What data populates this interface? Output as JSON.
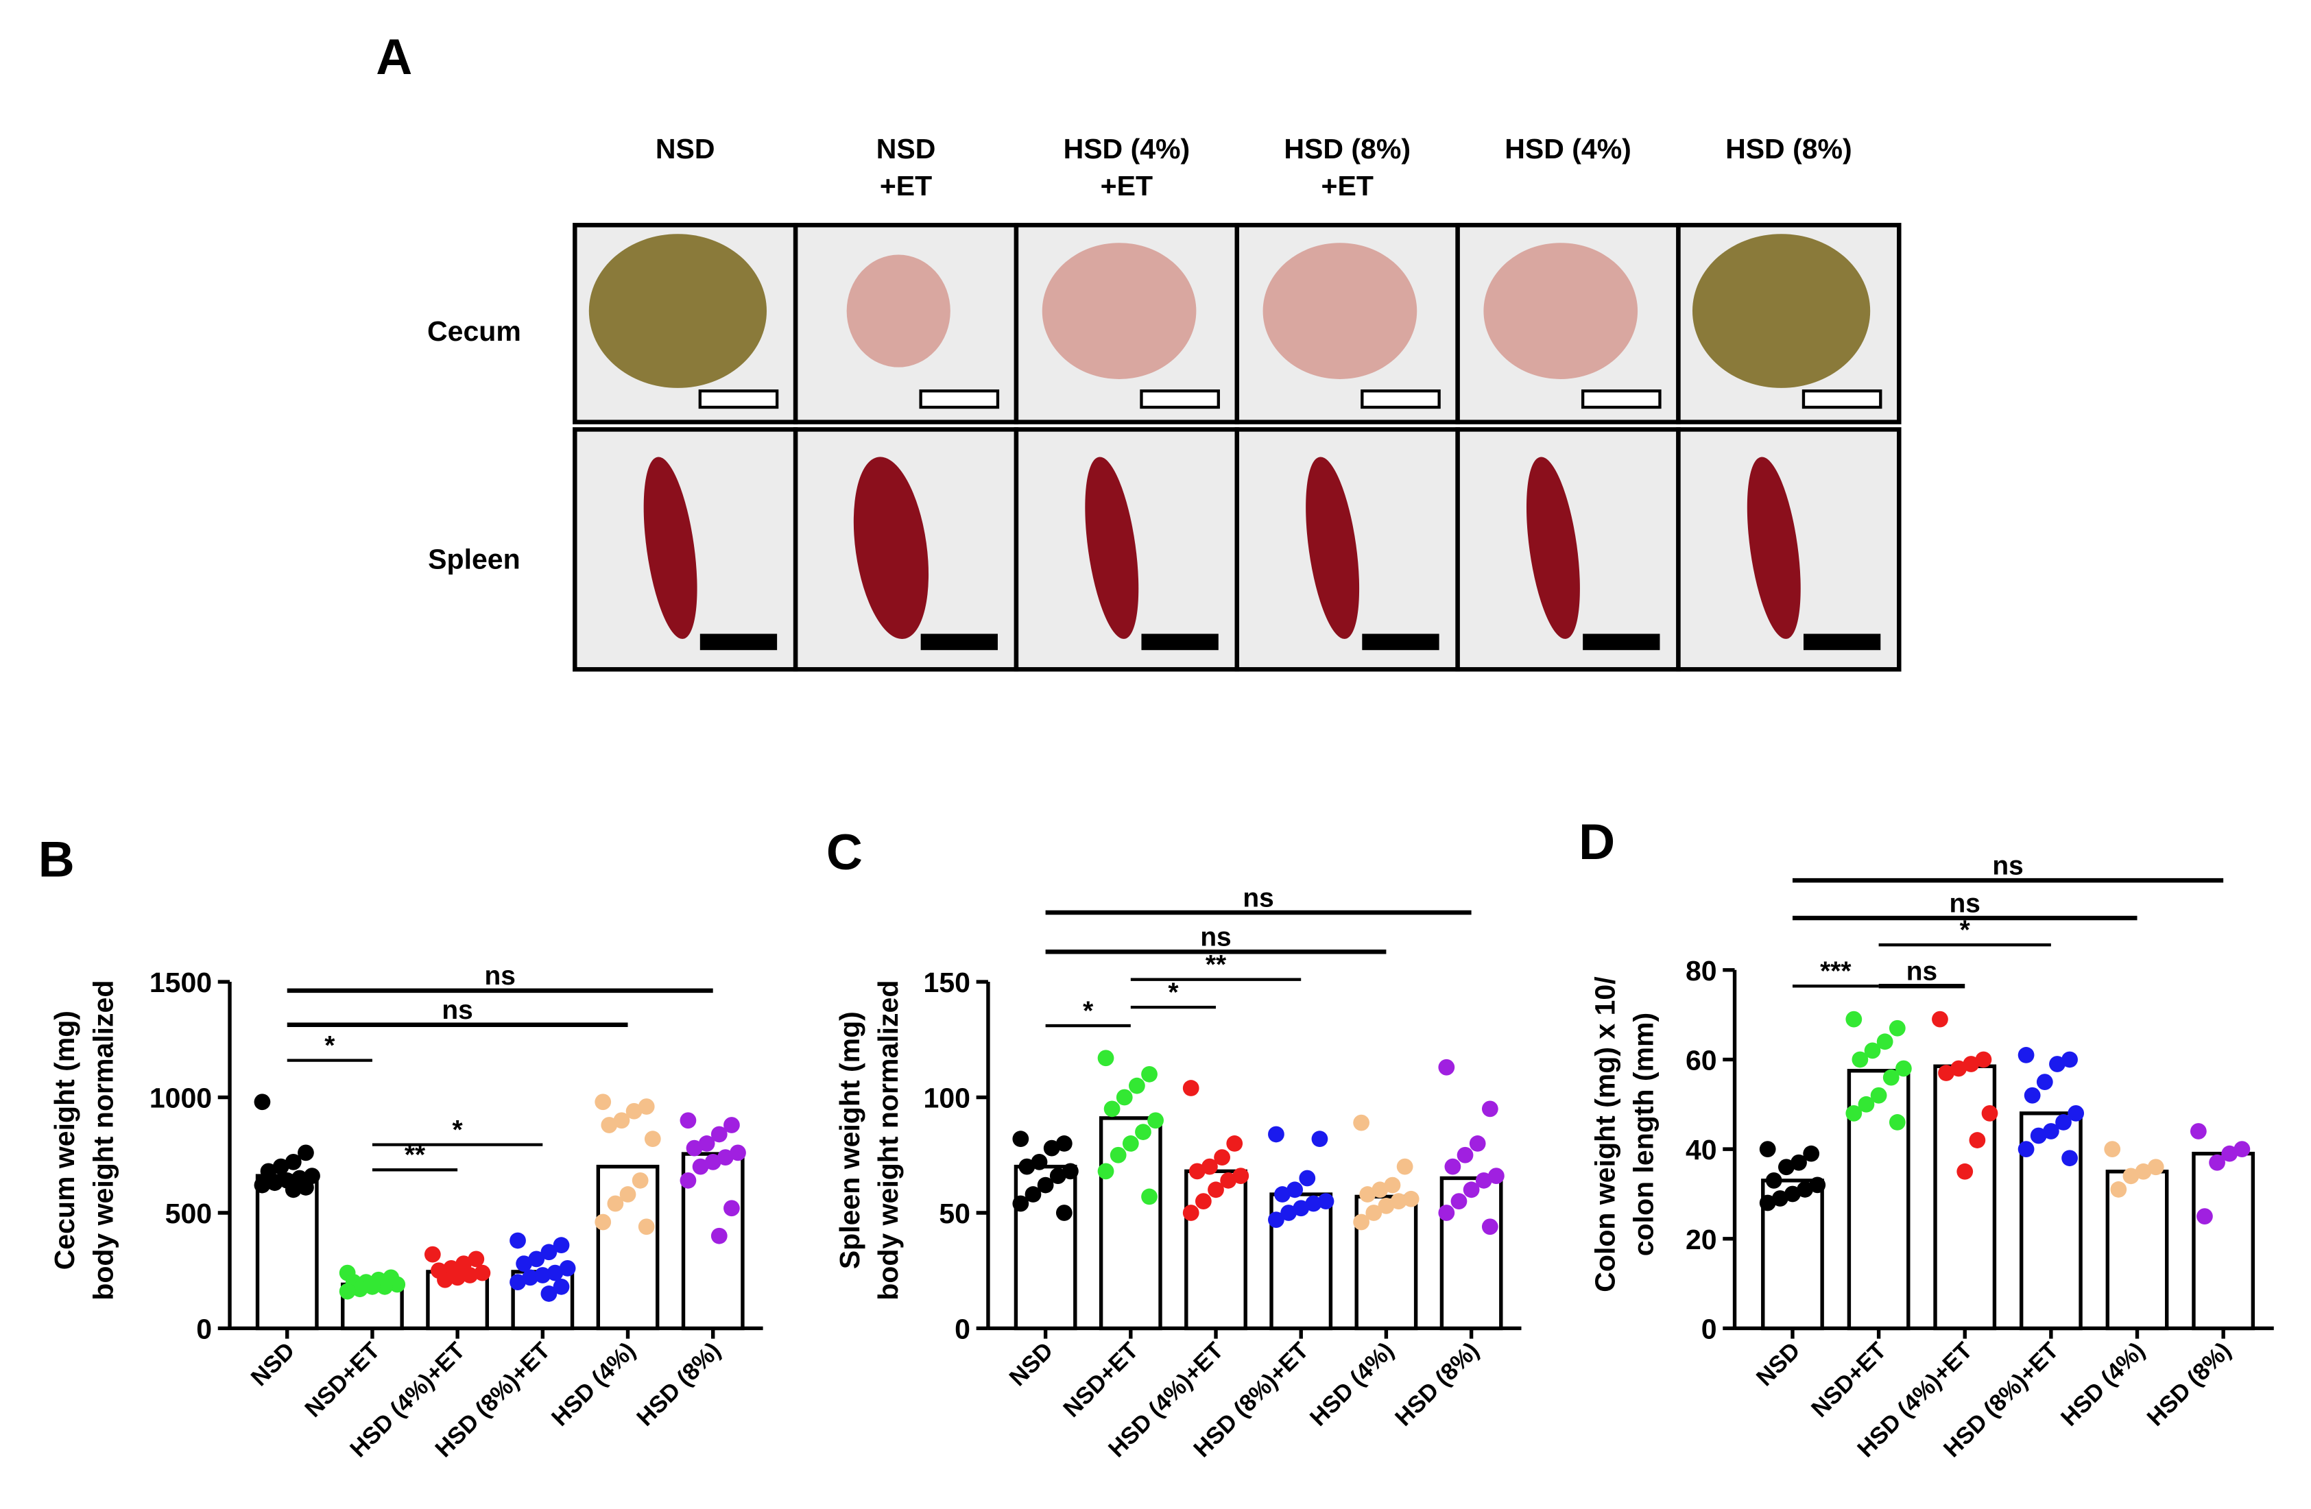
{
  "panel_a": {
    "panel": "A",
    "columns": [
      [
        "NSD"
      ],
      [
        "NSD",
        "+ET"
      ],
      [
        "HSD (4%)",
        "+ET"
      ],
      [
        "HSD (8%)",
        "+ET"
      ],
      [
        "HSD (4%)"
      ],
      [
        "HSD (8%)"
      ]
    ],
    "rows": [
      "Cecum",
      "Spleen"
    ]
  },
  "chart_data": [
    {
      "type": "bar",
      "panel": "B",
      "ylabel": [
        "Cecum weight (mg)",
        "body weight normalized"
      ],
      "categories": [
        "NSD",
        "NSD+ET",
        "HSD (4%)+ET",
        "HSD (8%)+ET",
        "HSD (4%)",
        "HSD (8%)"
      ],
      "colors": [
        "#000000",
        "#33e833",
        "#ee1c1c",
        "#1a1aee",
        "#f5c08a",
        "#a020e0"
      ],
      "values": [
        660,
        190,
        245,
        245,
        700,
        755
      ],
      "points": [
        [
          980,
          760,
          720,
          700,
          680,
          660,
          650,
          640,
          630,
          620,
          610,
          600
        ],
        [
          240,
          220,
          210,
          200,
          200,
          190,
          180,
          180,
          170,
          160
        ],
        [
          320,
          300,
          280,
          260,
          250,
          240,
          230,
          220,
          210
        ],
        [
          380,
          360,
          330,
          300,
          280,
          260,
          240,
          230,
          220,
          200,
          180,
          150
        ],
        [
          980,
          960,
          940,
          900,
          880,
          820,
          640,
          580,
          540,
          460,
          440
        ],
        [
          900,
          880,
          840,
          800,
          780,
          760,
          740,
          720,
          700,
          640,
          520,
          400
        ]
      ],
      "ylim": [
        0,
        1500
      ],
      "yticks": [
        0,
        500,
        1000,
        1500
      ],
      "comparisons": [
        {
          "groups": [
            0,
            5
          ],
          "y": 1462,
          "label": "ns"
        },
        {
          "groups": [
            0,
            4
          ],
          "y": 1314,
          "label": "ns"
        },
        {
          "groups": [
            0,
            1
          ],
          "y": 1160,
          "label": "*"
        },
        {
          "groups": [
            1,
            3
          ],
          "y": 795,
          "label": "*"
        },
        {
          "groups": [
            1,
            2
          ],
          "y": 686,
          "label": "**"
        }
      ]
    },
    {
      "type": "bar",
      "panel": "C",
      "ylabel": [
        "Spleen weight (mg)",
        "body weight normalized"
      ],
      "categories": [
        "NSD",
        "NSD+ET",
        "HSD (4%)+ET",
        "HSD (8%)+ET",
        "HSD (4%)",
        "HSD (8%)"
      ],
      "colors": [
        "#000000",
        "#33e833",
        "#ee1c1c",
        "#1a1aee",
        "#f5c08a",
        "#a020e0"
      ],
      "values": [
        70,
        91,
        68,
        58,
        57,
        65
      ],
      "points": [
        [
          82,
          80,
          78,
          72,
          70,
          68,
          66,
          62,
          58,
          54,
          50
        ],
        [
          117,
          110,
          105,
          100,
          95,
          90,
          85,
          80,
          75,
          68,
          57
        ],
        [
          104,
          80,
          74,
          70,
          68,
          66,
          64,
          60,
          55,
          50
        ],
        [
          84,
          82,
          65,
          60,
          58,
          55,
          54,
          52,
          50,
          47
        ],
        [
          89,
          70,
          62,
          60,
          58,
          56,
          55,
          53,
          50,
          46
        ],
        [
          113,
          95,
          80,
          75,
          70,
          66,
          64,
          60,
          55,
          50,
          44
        ]
      ],
      "ylim": [
        0,
        150
      ],
      "yticks": [
        0,
        50,
        100,
        150
      ],
      "comparisons": [
        {
          "groups": [
            0,
            5
          ],
          "y": 180,
          "label": "ns"
        },
        {
          "groups": [
            0,
            4
          ],
          "y": 163,
          "label": "ns"
        },
        {
          "groups": [
            1,
            3
          ],
          "y": 151,
          "label": "**"
        },
        {
          "groups": [
            1,
            2
          ],
          "y": 139,
          "label": "*"
        },
        {
          "groups": [
            0,
            1
          ],
          "y": 131,
          "label": "*"
        }
      ]
    },
    {
      "type": "bar",
      "panel": "D",
      "ylabel": [
        "Colon weight (mg) x 10/",
        "colon length (mm)"
      ],
      "categories": [
        "NSD",
        "NSD+ET",
        "HSD (4%)+ET",
        "HSD (8%)+ET",
        "HSD (4%)",
        "HSD (8%)"
      ],
      "colors": [
        "#000000",
        "#33e833",
        "#ee1c1c",
        "#1a1aee",
        "#f5c08a",
        "#a020e0"
      ],
      "values": [
        33,
        57.5,
        58.5,
        48,
        35,
        39
      ],
      "points": [
        [
          40,
          39,
          37,
          36,
          33,
          32,
          31,
          30,
          29,
          28
        ],
        [
          69,
          67,
          64,
          62,
          60,
          58,
          56,
          52,
          50,
          48,
          46
        ],
        [
          69,
          60,
          59,
          58,
          57,
          48,
          42,
          35
        ],
        [
          61,
          60,
          59,
          55,
          52,
          48,
          46,
          44,
          43,
          40,
          38
        ],
        [
          40,
          36,
          35,
          34,
          31
        ],
        [
          44,
          40,
          39,
          37,
          25
        ]
      ],
      "ylim": [
        0,
        80
      ],
      "yticks": [
        0,
        20,
        40,
        60,
        80
      ],
      "comparisons": [
        {
          "groups": [
            0,
            5
          ],
          "y": 100,
          "label": "ns"
        },
        {
          "groups": [
            0,
            4
          ],
          "y": 91.6,
          "label": "ns"
        },
        {
          "groups": [
            1,
            3
          ],
          "y": 85.6,
          "label": "*"
        },
        {
          "groups": [
            1,
            2
          ],
          "y": 76.4,
          "label": "ns"
        },
        {
          "groups": [
            0,
            1
          ],
          "y": 76.4,
          "label": "***"
        }
      ]
    }
  ]
}
